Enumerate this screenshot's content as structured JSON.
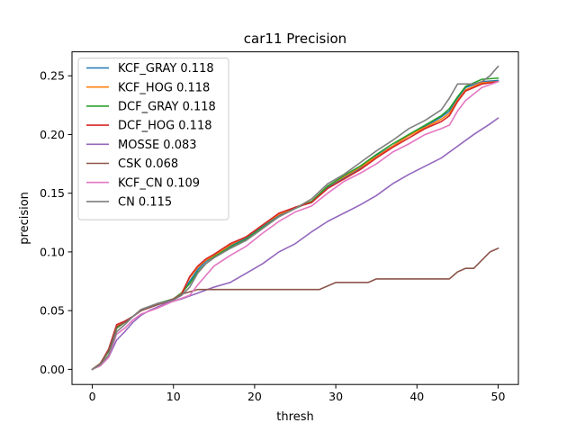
{
  "chart_data": {
    "type": "line",
    "title": "car11 Precision",
    "xlabel": "thresh",
    "ylabel": "precision",
    "xlim": [
      -2.5,
      52.5
    ],
    "ylim": [
      -0.0129,
      0.2704
    ],
    "xticks": [
      0,
      10,
      20,
      30,
      40,
      50
    ],
    "yticks": [
      0.0,
      0.05,
      0.1,
      0.15,
      0.2,
      0.25
    ],
    "xtick_labels": [
      "0",
      "10",
      "20",
      "30",
      "40",
      "50"
    ],
    "ytick_labels": [
      "0.00",
      "0.05",
      "0.10",
      "0.15",
      "0.20",
      "0.25"
    ],
    "grid": false,
    "legend": "upper-left",
    "series": [
      {
        "name": "KCF_GRAY 0.118",
        "color": "#1f77b4",
        "points": [
          [
            0,
            0.0
          ],
          [
            1,
            0.005
          ],
          [
            2,
            0.016
          ],
          [
            3,
            0.036
          ],
          [
            4,
            0.041
          ],
          [
            5,
            0.045
          ],
          [
            6,
            0.05
          ],
          [
            8,
            0.055
          ],
          [
            10,
            0.06
          ],
          [
            11,
            0.064
          ],
          [
            12,
            0.075
          ],
          [
            13,
            0.085
          ],
          [
            14,
            0.092
          ],
          [
            15,
            0.097
          ],
          [
            17,
            0.105
          ],
          [
            19,
            0.112
          ],
          [
            21,
            0.122
          ],
          [
            23,
            0.131
          ],
          [
            25,
            0.138
          ],
          [
            27,
            0.142
          ],
          [
            29,
            0.155
          ],
          [
            31,
            0.163
          ],
          [
            33,
            0.171
          ],
          [
            35,
            0.182
          ],
          [
            37,
            0.19
          ],
          [
            39,
            0.2
          ],
          [
            41,
            0.207
          ],
          [
            43,
            0.215
          ],
          [
            44,
            0.22
          ],
          [
            45,
            0.231
          ],
          [
            46,
            0.24
          ],
          [
            48,
            0.245
          ],
          [
            50,
            0.246
          ]
        ]
      },
      {
        "name": "KCF_HOG 0.118",
        "color": "#ff7f0e",
        "points": [
          [
            0,
            0.0
          ],
          [
            1,
            0.005
          ],
          [
            2,
            0.016
          ],
          [
            3,
            0.037
          ],
          [
            4,
            0.04
          ],
          [
            5,
            0.045
          ],
          [
            6,
            0.05
          ],
          [
            8,
            0.055
          ],
          [
            10,
            0.06
          ],
          [
            11,
            0.065
          ],
          [
            12,
            0.078
          ],
          [
            13,
            0.087
          ],
          [
            14,
            0.093
          ],
          [
            15,
            0.097
          ],
          [
            17,
            0.106
          ],
          [
            19,
            0.113
          ],
          [
            21,
            0.123
          ],
          [
            23,
            0.132
          ],
          [
            25,
            0.138
          ],
          [
            27,
            0.143
          ],
          [
            29,
            0.156
          ],
          [
            31,
            0.164
          ],
          [
            33,
            0.172
          ],
          [
            35,
            0.181
          ],
          [
            37,
            0.19
          ],
          [
            39,
            0.199
          ],
          [
            41,
            0.206
          ],
          [
            43,
            0.213
          ],
          [
            44,
            0.218
          ],
          [
            45,
            0.229
          ],
          [
            46,
            0.238
          ],
          [
            48,
            0.244
          ],
          [
            50,
            0.245
          ]
        ]
      },
      {
        "name": "DCF_GRAY 0.118",
        "color": "#2ca02c",
        "points": [
          [
            0,
            0.0
          ],
          [
            1,
            0.005
          ],
          [
            2,
            0.015
          ],
          [
            3,
            0.035
          ],
          [
            4,
            0.04
          ],
          [
            5,
            0.045
          ],
          [
            6,
            0.05
          ],
          [
            8,
            0.056
          ],
          [
            10,
            0.06
          ],
          [
            11,
            0.065
          ],
          [
            12,
            0.073
          ],
          [
            13,
            0.083
          ],
          [
            14,
            0.09
          ],
          [
            15,
            0.096
          ],
          [
            17,
            0.104
          ],
          [
            19,
            0.111
          ],
          [
            21,
            0.121
          ],
          [
            23,
            0.13
          ],
          [
            25,
            0.137
          ],
          [
            27,
            0.143
          ],
          [
            29,
            0.156
          ],
          [
            31,
            0.165
          ],
          [
            33,
            0.173
          ],
          [
            35,
            0.183
          ],
          [
            37,
            0.192
          ],
          [
            39,
            0.2
          ],
          [
            41,
            0.208
          ],
          [
            43,
            0.216
          ],
          [
            44,
            0.222
          ],
          [
            45,
            0.232
          ],
          [
            46,
            0.241
          ],
          [
            48,
            0.247
          ],
          [
            50,
            0.248
          ]
        ]
      },
      {
        "name": "DCF_HOG 0.118",
        "color": "#d62728",
        "points": [
          [
            0,
            0.0
          ],
          [
            1,
            0.005
          ],
          [
            2,
            0.017
          ],
          [
            3,
            0.038
          ],
          [
            4,
            0.041
          ],
          [
            5,
            0.045
          ],
          [
            6,
            0.05
          ],
          [
            8,
            0.055
          ],
          [
            10,
            0.059
          ],
          [
            11,
            0.064
          ],
          [
            12,
            0.079
          ],
          [
            13,
            0.088
          ],
          [
            14,
            0.094
          ],
          [
            15,
            0.098
          ],
          [
            17,
            0.107
          ],
          [
            19,
            0.113
          ],
          [
            21,
            0.123
          ],
          [
            23,
            0.133
          ],
          [
            25,
            0.138
          ],
          [
            27,
            0.142
          ],
          [
            29,
            0.154
          ],
          [
            31,
            0.162
          ],
          [
            33,
            0.17
          ],
          [
            35,
            0.18
          ],
          [
            37,
            0.189
          ],
          [
            39,
            0.197
          ],
          [
            41,
            0.205
          ],
          [
            43,
            0.211
          ],
          [
            44,
            0.216
          ],
          [
            45,
            0.228
          ],
          [
            46,
            0.237
          ],
          [
            48,
            0.243
          ],
          [
            50,
            0.245
          ]
        ]
      },
      {
        "name": "MOSSE 0.083",
        "color": "#9467bd",
        "points": [
          [
            0,
            0.0
          ],
          [
            1,
            0.004
          ],
          [
            2,
            0.01
          ],
          [
            3,
            0.025
          ],
          [
            4,
            0.032
          ],
          [
            5,
            0.04
          ],
          [
            6,
            0.046
          ],
          [
            7,
            0.05
          ],
          [
            9,
            0.056
          ],
          [
            11,
            0.06
          ],
          [
            13,
            0.065
          ],
          [
            15,
            0.07
          ],
          [
            17,
            0.074
          ],
          [
            19,
            0.082
          ],
          [
            21,
            0.09
          ],
          [
            23,
            0.1
          ],
          [
            25,
            0.107
          ],
          [
            27,
            0.117
          ],
          [
            29,
            0.126
          ],
          [
            31,
            0.133
          ],
          [
            33,
            0.14
          ],
          [
            35,
            0.148
          ],
          [
            37,
            0.158
          ],
          [
            39,
            0.166
          ],
          [
            41,
            0.173
          ],
          [
            43,
            0.18
          ],
          [
            45,
            0.19
          ],
          [
            47,
            0.2
          ],
          [
            49,
            0.209
          ],
          [
            50,
            0.214
          ]
        ]
      },
      {
        "name": "CSK 0.068",
        "color": "#8c564b",
        "points": [
          [
            0,
            0.0
          ],
          [
            1,
            0.005
          ],
          [
            2,
            0.016
          ],
          [
            3,
            0.036
          ],
          [
            4,
            0.04
          ],
          [
            5,
            0.045
          ],
          [
            6,
            0.05
          ],
          [
            8,
            0.055
          ],
          [
            10,
            0.06
          ],
          [
            11,
            0.064
          ],
          [
            12,
            0.066
          ],
          [
            13,
            0.068
          ],
          [
            16,
            0.068
          ],
          [
            20,
            0.068
          ],
          [
            24,
            0.068
          ],
          [
            28,
            0.068
          ],
          [
            29,
            0.071
          ],
          [
            30,
            0.074
          ],
          [
            34,
            0.074
          ],
          [
            35,
            0.077
          ],
          [
            40,
            0.077
          ],
          [
            44,
            0.077
          ],
          [
            45,
            0.083
          ],
          [
            46,
            0.086
          ],
          [
            47,
            0.086
          ],
          [
            48,
            0.093
          ],
          [
            49,
            0.1
          ],
          [
            50,
            0.103
          ]
        ]
      },
      {
        "name": "KCF_CN 0.109",
        "color": "#e377c2",
        "points": [
          [
            0,
            0.0
          ],
          [
            1,
            0.003
          ],
          [
            2,
            0.01
          ],
          [
            3,
            0.03
          ],
          [
            4,
            0.035
          ],
          [
            5,
            0.042
          ],
          [
            6,
            0.047
          ],
          [
            8,
            0.052
          ],
          [
            10,
            0.058
          ],
          [
            12,
            0.063
          ],
          [
            13,
            0.072
          ],
          [
            14,
            0.08
          ],
          [
            15,
            0.088
          ],
          [
            17,
            0.097
          ],
          [
            19,
            0.105
          ],
          [
            21,
            0.116
          ],
          [
            23,
            0.126
          ],
          [
            25,
            0.134
          ],
          [
            27,
            0.139
          ],
          [
            29,
            0.15
          ],
          [
            31,
            0.16
          ],
          [
            33,
            0.167
          ],
          [
            35,
            0.175
          ],
          [
            37,
            0.185
          ],
          [
            39,
            0.192
          ],
          [
            41,
            0.2
          ],
          [
            43,
            0.205
          ],
          [
            44,
            0.208
          ],
          [
            45,
            0.22
          ],
          [
            46,
            0.229
          ],
          [
            48,
            0.24
          ],
          [
            50,
            0.245
          ]
        ]
      },
      {
        "name": "CN 0.115",
        "color": "#7f7f7f",
        "points": [
          [
            0,
            0.0
          ],
          [
            1,
            0.004
          ],
          [
            2,
            0.012
          ],
          [
            3,
            0.032
          ],
          [
            4,
            0.038
          ],
          [
            5,
            0.045
          ],
          [
            6,
            0.051
          ],
          [
            8,
            0.056
          ],
          [
            10,
            0.059
          ],
          [
            11,
            0.063
          ],
          [
            12,
            0.07
          ],
          [
            13,
            0.082
          ],
          [
            14,
            0.09
          ],
          [
            15,
            0.095
          ],
          [
            17,
            0.103
          ],
          [
            19,
            0.11
          ],
          [
            21,
            0.12
          ],
          [
            23,
            0.13
          ],
          [
            25,
            0.137
          ],
          [
            27,
            0.145
          ],
          [
            29,
            0.158
          ],
          [
            31,
            0.166
          ],
          [
            33,
            0.176
          ],
          [
            35,
            0.186
          ],
          [
            37,
            0.195
          ],
          [
            39,
            0.205
          ],
          [
            41,
            0.212
          ],
          [
            43,
            0.221
          ],
          [
            44,
            0.231
          ],
          [
            45,
            0.243
          ],
          [
            47,
            0.243
          ],
          [
            48,
            0.245
          ],
          [
            49,
            0.25
          ],
          [
            50,
            0.258
          ]
        ]
      }
    ]
  }
}
